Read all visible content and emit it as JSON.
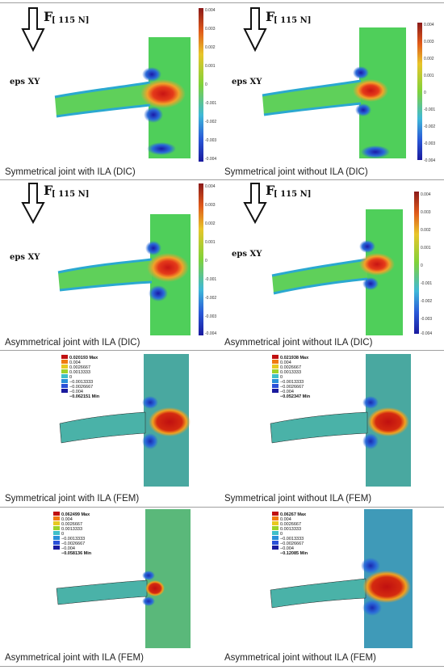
{
  "figure": {
    "force_label": "F",
    "force_value": "[ 115 N]",
    "strain_label": "eps XY",
    "dic_scale_ticks": [
      "0.004",
      "0.003",
      "0.002",
      "0.001",
      "0",
      "-0.001",
      "-0.002",
      "-0.003",
      "-0.004"
    ],
    "fem_legend_levels": [
      "0.004",
      "0.0026667",
      "0.0013333",
      "0",
      "−0.0013333",
      "−0.0026667",
      "−0.004"
    ],
    "panels": [
      {
        "caption": "Symmetrical joint with ILA (DIC)"
      },
      {
        "caption": "Symmetrical joint without ILA (DIC)"
      },
      {
        "caption": "Asymmetrical joint with ILA (DIC)"
      },
      {
        "caption": "Asymmetrical joint without ILA (DIC)"
      },
      {
        "caption": "Symmetrical joint with ILA (FEM)",
        "max": "0.020193 Max",
        "min": "−0.062151 Min"
      },
      {
        "caption": "Symmetrical joint without ILA (FEM)",
        "max": "0.021938 Max",
        "min": "−0.052347 Min"
      },
      {
        "caption": "Asymmetrical joint with ILA (FEM)",
        "max": "0.062499 Max",
        "min": "−0.058136 Min"
      },
      {
        "caption": "Asymmetrical joint without ILA (FEM)",
        "max": "0.06267 Max",
        "min": "−0.12085 Min"
      }
    ]
  }
}
